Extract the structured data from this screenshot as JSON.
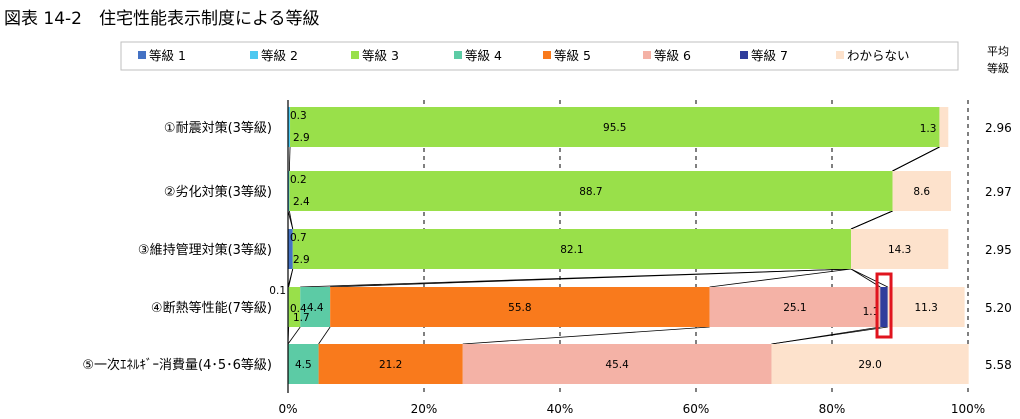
{
  "title": "図表 14-2　住宅性能表示制度による等級",
  "avg_header_line1": "平均",
  "avg_header_line2": "等級",
  "colors": {
    "等級 1": "#4472c4",
    "等級 2": "#4dc8f0",
    "等級 3": "#99e04a",
    "等級 4": "#5ccba5",
    "等級 5": "#f97a1c",
    "等級 6": "#f4b2a6",
    "等級 7": "#2f3d9c",
    "わからない": "#fde2cc",
    "highlight": "#e0141e"
  },
  "chart_data": {
    "type": "bar",
    "orientation": "horizontal",
    "stacked": "percent",
    "categories": [
      "①耐震対策(3等級)",
      "②劣化対策(3等級)",
      "③維持管理対策(3等級)",
      "④断熱等性能(7等級)",
      "⑤一次ｴﾈﾙｷﾞｰ消費量(4･5･6等級)"
    ],
    "series": [
      {
        "name": "等級 1",
        "values": [
          0,
          0,
          0.7,
          0,
          0
        ]
      },
      {
        "name": "等級 2",
        "values": [
          0.3,
          0.2,
          0,
          0.1,
          0
        ]
      },
      {
        "name": "等級 3",
        "values": [
          95.5,
          88.7,
          82.1,
          1.7,
          0
        ]
      },
      {
        "name": "等級 4",
        "values": [
          0,
          0,
          0,
          4.4,
          4.5
        ]
      },
      {
        "name": "等級 5",
        "values": [
          0,
          0,
          0,
          55.8,
          21.2
        ]
      },
      {
        "name": "等級 6",
        "values": [
          0,
          0,
          0,
          25.1,
          45.4
        ]
      },
      {
        "name": "等級 7",
        "values": [
          0,
          0,
          0,
          1.1,
          0
        ]
      },
      {
        "name": "わからない",
        "values": [
          1.3,
          8.6,
          14.3,
          11.3,
          29.0
        ]
      }
    ],
    "data_labels": [
      [
        {
          "series": "等級 2",
          "text": "0.3",
          "pos": "top-left"
        },
        {
          "series": "等級 2",
          "text": "2.9",
          "pos": "bottom-left"
        },
        {
          "series": "等級 3",
          "text": "95.5",
          "pos": "center"
        },
        {
          "series": "わからない",
          "text": "1.3",
          "pos": "left"
        }
      ],
      [
        {
          "series": "等級 2",
          "text": "0.2",
          "pos": "top-left"
        },
        {
          "series": "等級 2",
          "text": "2.4",
          "pos": "bottom-left"
        },
        {
          "series": "等級 3",
          "text": "88.7",
          "pos": "center"
        },
        {
          "series": "わからない",
          "text": "8.6",
          "pos": "center"
        }
      ],
      [
        {
          "series": "等級 1",
          "text": "0.7",
          "pos": "top-left"
        },
        {
          "series": "等級 1",
          "text": "2.9",
          "pos": "bottom-left"
        },
        {
          "series": "等級 3",
          "text": "82.1",
          "pos": "center"
        },
        {
          "series": "わからない",
          "text": "14.3",
          "pos": "center"
        }
      ],
      [
        {
          "series": "等級 2",
          "text": "0.1",
          "pos": "outside-top-left"
        },
        {
          "series": "等級 3",
          "text": "0.4",
          "pos": "left"
        },
        {
          "series": "等級 3",
          "text": "1.7",
          "pos": "bottom-left"
        },
        {
          "series": "等級 4",
          "text": "4.4",
          "pos": "center"
        },
        {
          "series": "等級 5",
          "text": "55.8",
          "pos": "center"
        },
        {
          "series": "等級 6",
          "text": "25.1",
          "pos": "center"
        },
        {
          "series": "等級 7",
          "text": "1.1",
          "pos": "left-bottom"
        },
        {
          "series": "わからない",
          "text": "11.3",
          "pos": "center"
        }
      ],
      [
        {
          "series": "等級 4",
          "text": "4.5",
          "pos": "center"
        },
        {
          "series": "等級 5",
          "text": "21.2",
          "pos": "center"
        },
        {
          "series": "等級 6",
          "text": "45.4",
          "pos": "center"
        },
        {
          "series": "わからない",
          "text": "29.0",
          "pos": "center"
        }
      ]
    ],
    "average_grade": [
      "2.96",
      "2.97",
      "2.95",
      "5.20",
      "5.58"
    ],
    "xlim": [
      0,
      100
    ],
    "xticks": [
      "0%",
      "20%",
      "40%",
      "60%",
      "80%",
      "100%"
    ],
    "grid": "vertical dashed",
    "legend": "top",
    "series_lines": true,
    "highlight": {
      "category_index": 3,
      "series": "等級 7"
    }
  }
}
